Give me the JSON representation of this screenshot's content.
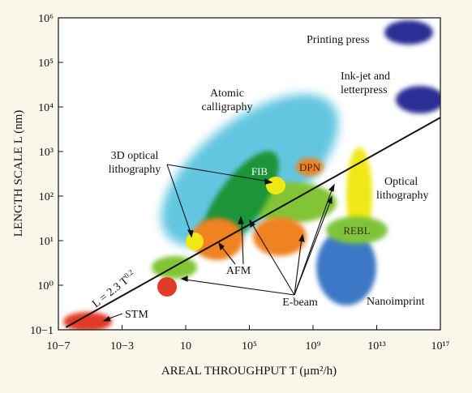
{
  "chart_data": {
    "type": "scatter",
    "xlabel": "AREAL THROUGHPUT T (μm²/h)",
    "ylabel": "LENGTH SCALE L (nm)",
    "x_scale": "log",
    "y_scale": "log",
    "xlim": [
      1e-07,
      1e+17
    ],
    "ylim": [
      0.1,
      1000000.0
    ],
    "x_ticks": [
      "10−7",
      "10−3",
      "10",
      "10⁵",
      "10⁹",
      "10¹³",
      "10¹⁷"
    ],
    "x_tick_values": [
      1e-07,
      0.001,
      10,
      100000.0,
      1000000000.0,
      10000000000000.0,
      1e+17
    ],
    "y_ticks": [
      "10−1",
      "10⁰",
      "10¹",
      "10²",
      "10³",
      "10⁴",
      "10⁵",
      "10⁶"
    ],
    "y_tick_values": [
      0.1,
      1,
      10,
      100,
      1000,
      10000.0,
      100000.0,
      1000000.0
    ],
    "trend_line": {
      "label": "L = 2.3 T^0.2",
      "coefficient": 2.3,
      "exponent": 0.2
    },
    "regions": [
      {
        "name": "Atomic calligraphy",
        "x_range": [
          1,
          100000000000.0
        ],
        "y_range": [
          3,
          10000.0
        ],
        "color": "#62c6e0"
      },
      {
        "name": "FIB",
        "x_range": [
          1,
          1000000.0
        ],
        "y_range": [
          3,
          1000
        ],
        "color": "#1e9438"
      },
      {
        "name": "DPN",
        "x_range": [
          30000000.0,
          3000000000.0
        ],
        "y_range": [
          400,
          1500
        ],
        "color": "#f08222"
      },
      {
        "name": "Optical lithography",
        "x_range": [
          100000000000.0,
          100000000000000.0
        ],
        "y_range": [
          20,
          5000
        ],
        "color": "#f0e815"
      },
      {
        "name": "REBL",
        "x_range": [
          1000000000.0,
          100000000000000.0
        ],
        "y_range": [
          5,
          30
        ],
        "color": "#7ec43a"
      },
      {
        "name": "Nanoimprint",
        "x_range": [
          1000000000.0,
          10000000000000.0
        ],
        "y_range": [
          0.3,
          20
        ],
        "color": "#3d78c6"
      },
      {
        "name": "Printing press",
        "x_range": [
          100000000000000.0,
          1e+16
        ],
        "y_range": [
          300000.0,
          2000000.0
        ],
        "color": "#2c2f95"
      },
      {
        "name": "Ink-jet and letterpress",
        "x_range": [
          100000000000000.0,
          1e+17
        ],
        "y_range": [
          7000,
          50000.0
        ],
        "color": "#2c2f95"
      },
      {
        "name": "AFM",
        "x_range": [
          0.5,
          100000000.0
        ],
        "y_range": [
          5,
          30
        ],
        "color": "#f08222"
      },
      {
        "name": "E-beam",
        "x_range": [
          0.0001,
          10000000000.0
        ],
        "y_range": [
          0.8,
          300
        ],
        "color": "#82c436"
      },
      {
        "name": "3D optical lithography",
        "x_range": [
          1,
          1000000.0
        ],
        "y_range": [
          7,
          300
        ],
        "color": "#f0e815"
      },
      {
        "name": "STM",
        "x_range": [
          1e-07,
          0.0001
        ],
        "y_range": [
          0.1,
          0.3
        ],
        "color": "#e03a28"
      }
    ],
    "annotations": {
      "atomic_calligraphy_1": "Atomic",
      "atomic_calligraphy_2": "calligraphy",
      "printing_press": "Printing press",
      "inkjet_1": "Ink-jet and",
      "inkjet_2": "letterpress",
      "optical_3d_1": "3D optical",
      "optical_3d_2": "lithography",
      "fib": "FIB",
      "dpn": "DPN",
      "optical_1": "Optical",
      "optical_2": "lithography",
      "rebl": "REBL",
      "afm": "AFM",
      "ebeam": "E-beam",
      "nanoimprint": "Nanoimprint",
      "stm": "STM"
    },
    "grid": false,
    "legend": "none"
  }
}
